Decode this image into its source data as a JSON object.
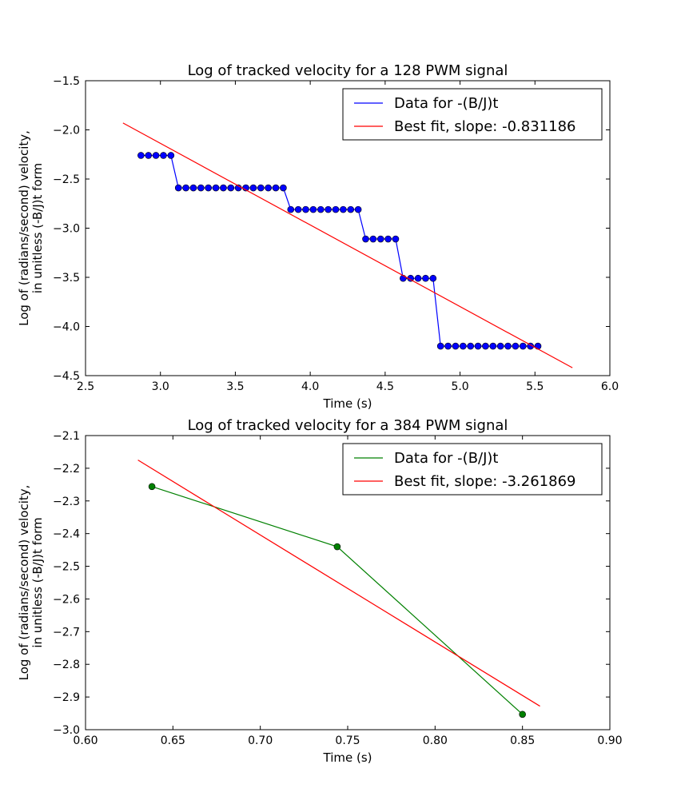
{
  "chart_data": [
    {
      "type": "line",
      "title": "Log of tracked velocity for a 128 PWM signal",
      "xlabel": "Time (s)",
      "ylabel": [
        "Log of (radians/second) velocity,",
        "in unitless (-B/J)t form"
      ],
      "xlim": [
        2.5,
        6.0
      ],
      "ylim": [
        -4.5,
        -1.5
      ],
      "xticks": [
        2.5,
        3.0,
        3.5,
        4.0,
        4.5,
        5.0,
        5.5,
        6.0
      ],
      "xtick_labels": [
        "2.5",
        "3.0",
        "3.5",
        "4.0",
        "4.5",
        "5.0",
        "5.5",
        "6.0"
      ],
      "yticks": [
        -1.5,
        -2.0,
        -2.5,
        -3.0,
        -3.5,
        -4.0,
        -4.5
      ],
      "ytick_labels": [
        "−1.5",
        "−2.0",
        "−2.5",
        "−3.0",
        "−3.5",
        "−4.0",
        "−4.5"
      ],
      "legend_position": "top-right",
      "series": [
        {
          "name": "Data for -(B/J)t",
          "color": "#0000ff",
          "markers": true,
          "x": [
            2.87,
            2.92,
            2.97,
            3.02,
            3.07,
            3.12,
            3.17,
            3.22,
            3.27,
            3.32,
            3.37,
            3.42,
            3.47,
            3.52,
            3.57,
            3.62,
            3.67,
            3.72,
            3.77,
            3.82,
            3.87,
            3.92,
            3.97,
            4.02,
            4.07,
            4.12,
            4.17,
            4.22,
            4.27,
            4.32,
            4.37,
            4.42,
            4.47,
            4.52,
            4.57,
            4.62,
            4.67,
            4.72,
            4.77,
            4.82,
            4.87,
            4.92,
            4.97,
            5.02,
            5.07,
            5.12,
            5.17,
            5.22,
            5.27,
            5.32,
            5.37,
            5.42,
            5.47,
            5.52
          ],
          "y": [
            -2.26,
            -2.26,
            -2.26,
            -2.26,
            -2.26,
            -2.59,
            -2.59,
            -2.59,
            -2.59,
            -2.59,
            -2.59,
            -2.59,
            -2.59,
            -2.59,
            -2.59,
            -2.59,
            -2.59,
            -2.59,
            -2.59,
            -2.59,
            -2.81,
            -2.81,
            -2.81,
            -2.81,
            -2.81,
            -2.81,
            -2.81,
            -2.81,
            -2.81,
            -2.81,
            -3.11,
            -3.11,
            -3.11,
            -3.11,
            -3.11,
            -3.51,
            -3.51,
            -3.51,
            -3.51,
            -3.51,
            -4.2,
            -4.2,
            -4.2,
            -4.2,
            -4.2,
            -4.2,
            -4.2,
            -4.2,
            -4.2,
            -4.2,
            -4.2,
            -4.2,
            -4.2,
            -4.2
          ]
        },
        {
          "name": "Best fit, slope: -0.831186",
          "color": "#ff0000",
          "markers": false,
          "x": [
            2.75,
            5.75
          ],
          "y": [
            -1.93,
            -4.42
          ]
        }
      ]
    },
    {
      "type": "line",
      "title": "Log of tracked velocity for a 384 PWM signal",
      "xlabel": "Time (s)",
      "ylabel": [
        "Log of (radians/second) velocity,",
        "in unitless (-B/J)t form"
      ],
      "xlim": [
        0.6,
        0.9
      ],
      "ylim": [
        -3.0,
        -2.1
      ],
      "xticks": [
        0.6,
        0.65,
        0.7,
        0.75,
        0.8,
        0.85,
        0.9
      ],
      "xtick_labels": [
        "0.60",
        "0.65",
        "0.70",
        "0.75",
        "0.80",
        "0.85",
        "0.90"
      ],
      "yticks": [
        -2.1,
        -2.2,
        -2.3,
        -2.4,
        -2.5,
        -2.6,
        -2.7,
        -2.8,
        -2.9,
        -3.0
      ],
      "ytick_labels": [
        "−2.1",
        "−2.2",
        "−2.3",
        "−2.4",
        "−2.5",
        "−2.6",
        "−2.7",
        "−2.8",
        "−2.9",
        "−3.0"
      ],
      "legend_position": "top-right",
      "series": [
        {
          "name": "Data for -(B/J)t",
          "color": "#008000",
          "markers": true,
          "x": [
            0.638,
            0.744,
            0.85
          ],
          "y": [
            -2.256,
            -2.44,
            -2.953
          ]
        },
        {
          "name": "Best fit, slope: -3.261869",
          "color": "#ff0000",
          "markers": false,
          "x": [
            0.63,
            0.86
          ],
          "y": [
            -2.175,
            -2.928
          ]
        }
      ]
    }
  ]
}
